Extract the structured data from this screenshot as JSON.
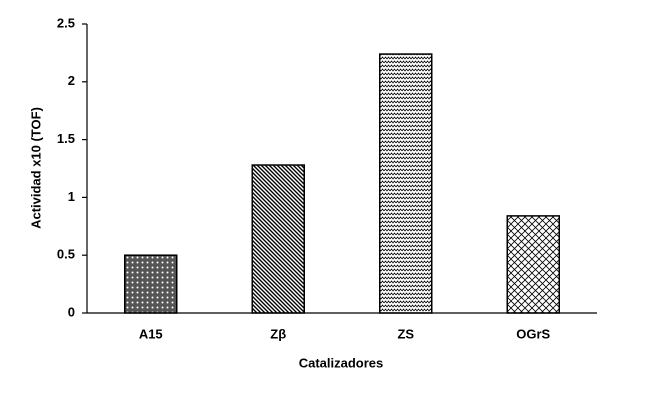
{
  "chart_data": {
    "type": "bar",
    "y_label": "Actividad x10 (TOF)",
    "x_label": "Catalizadores",
    "categories": [
      "A15",
      "Zβ",
      "ZS",
      "OGrS"
    ],
    "values": [
      0.5,
      1.28,
      2.24,
      0.84
    ],
    "color": "#000000",
    "ylim": [
      0,
      2.5
    ],
    "yticks": [
      0,
      0.5,
      1,
      1.5,
      2,
      2.5
    ],
    "grid": false
  }
}
